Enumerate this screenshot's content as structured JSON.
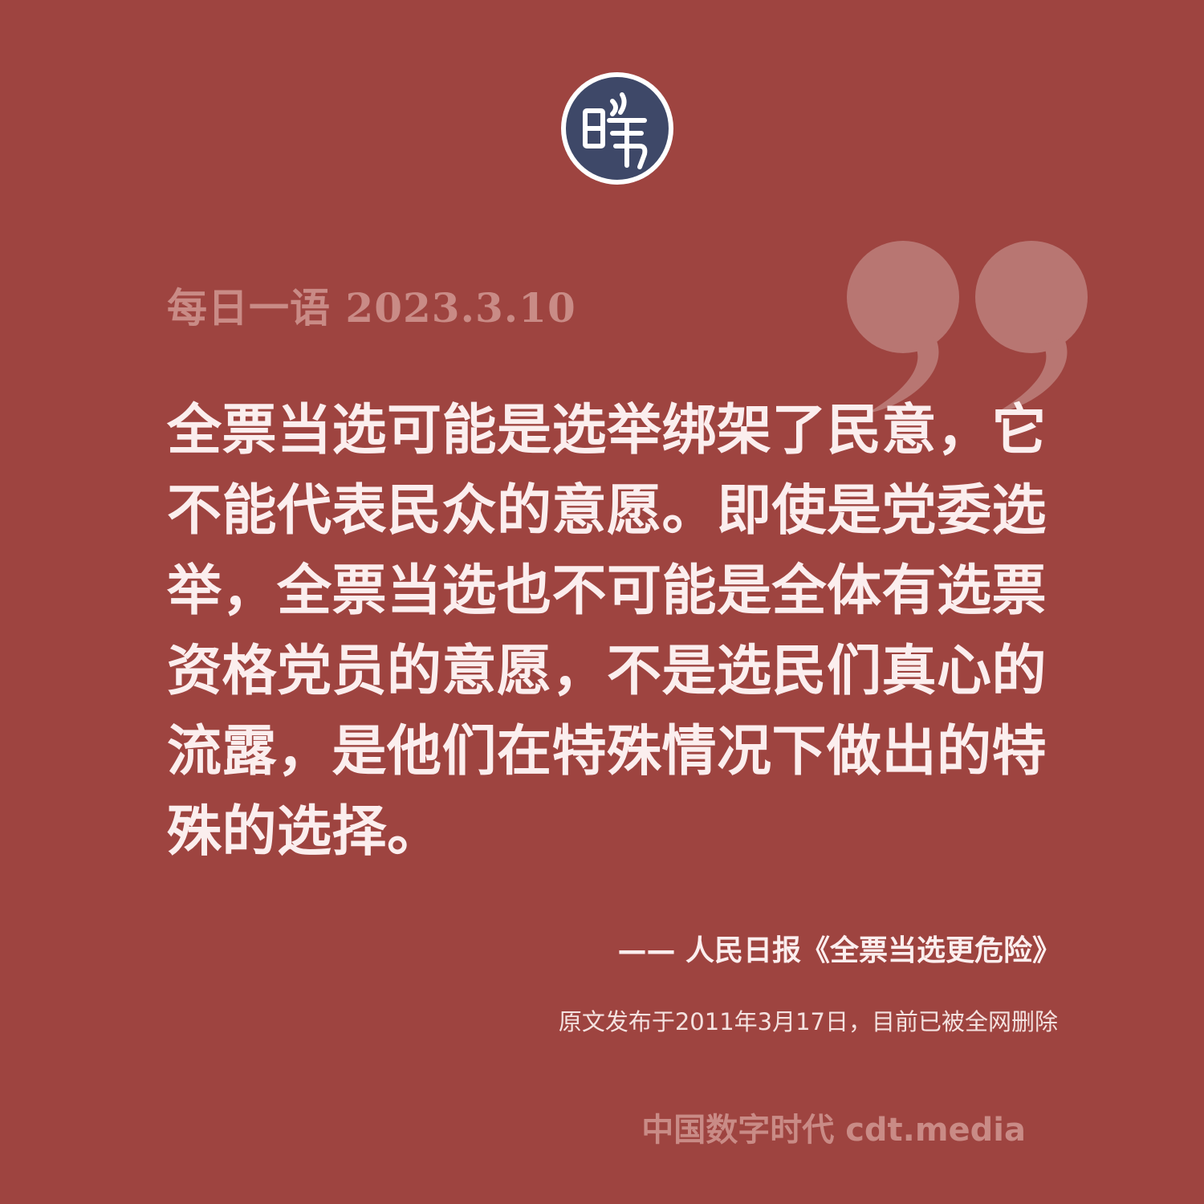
{
  "brand": {
    "logo_icon": "cdt-seal-logo-icon",
    "logo_glyph": "旹",
    "footer": "中国数字时代 cdt.media"
  },
  "header": {
    "date_line": "每日一语 2023.3.10"
  },
  "decoration": {
    "quote_icon": "closing-quote-icon"
  },
  "quote": {
    "text": "全票当选可能是选举绑架了民意，它不能代表民众的意愿。即使是党委选举，全票当选也不可能是全体有选票资格党员的意愿，不是选民们真心的流露，是他们在特殊情况下做出的特殊的选择。"
  },
  "attribution": {
    "source": "—— 人民日报《全票当选更危险》",
    "note": "原文发布于2011年3月17日，目前已被全网删除"
  },
  "colors": {
    "background": "#9e4440",
    "text_main": "#fbeeee",
    "text_muted": "#c98b86",
    "logo_fill": "#3e4868",
    "quote_mark": "#b87672"
  }
}
